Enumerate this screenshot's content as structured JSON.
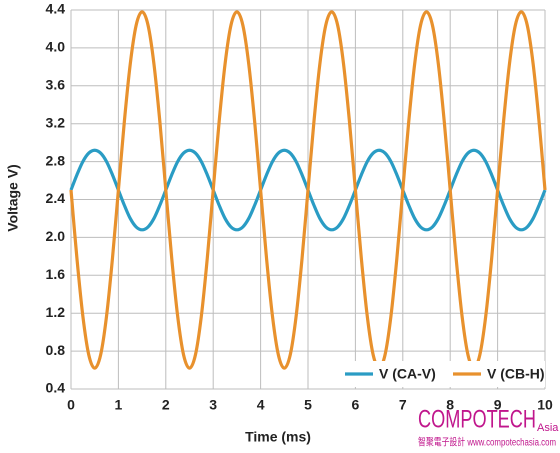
{
  "chart_data": {
    "type": "line",
    "x_label": "Time (ms)",
    "y_label": "Voltage V)",
    "watermark": {
      "brand": "COMPOTECH",
      "brand_suffix": "Asia",
      "tagline": "智聚電子設計 www.compotechasia.com"
    },
    "xlim": [
      0,
      10
    ],
    "xticks": [
      0,
      1,
      2,
      3,
      4,
      5,
      6,
      7,
      8,
      9,
      10
    ],
    "ylim": [
      0.4,
      4.4
    ],
    "yticks": [
      0.4,
      0.8,
      1.2,
      1.6,
      {
        "value": 2,
        "label": "2.0"
      },
      2.4,
      2.8,
      3.2,
      3.6,
      {
        "value": 4,
        "label": "4.0"
      },
      4.4
    ],
    "grid": true,
    "legend": "lower right",
    "x": [
      0,
      0.125,
      0.25,
      0.375,
      0.5,
      0.625,
      0.75,
      0.875,
      1,
      1.125,
      1.25,
      1.375,
      1.5,
      1.625,
      1.75,
      1.875,
      2,
      2.125,
      2.25,
      2.375,
      2.5,
      2.625,
      2.75,
      2.875,
      3,
      3.125,
      3.25,
      3.375,
      3.5,
      3.625,
      3.75,
      3.875,
      4,
      4.125,
      4.25,
      4.375,
      4.5,
      4.625,
      4.75,
      4.875,
      5,
      5.125,
      5.25,
      5.375,
      5.5,
      5.625,
      5.75,
      5.875,
      6,
      6.125,
      6.25,
      6.375,
      6.5,
      6.625,
      6.75,
      6.875,
      7,
      7.125,
      7.25,
      7.375,
      7.5,
      7.625,
      7.75,
      7.875,
      8,
      8.125,
      8.25,
      8.375,
      8.5,
      8.625,
      8.75,
      8.875,
      9,
      9.125,
      9.25,
      9.375,
      9.5,
      9.625,
      9.75,
      9.875,
      10
    ],
    "series": [
      {
        "name": "V (CA-V)",
        "color": "#2a9cc4",
        "values": [
          2.5,
          2.66,
          2.8,
          2.89,
          2.92,
          2.89,
          2.8,
          2.66,
          2.5,
          2.34,
          2.2,
          2.11,
          2.08,
          2.11,
          2.2,
          2.34,
          2.5,
          2.66,
          2.8,
          2.89,
          2.92,
          2.89,
          2.8,
          2.66,
          2.5,
          2.34,
          2.2,
          2.11,
          2.08,
          2.11,
          2.2,
          2.34,
          2.5,
          2.66,
          2.8,
          2.89,
          2.92,
          2.89,
          2.8,
          2.66,
          2.5,
          2.34,
          2.2,
          2.11,
          2.08,
          2.11,
          2.2,
          2.34,
          2.5,
          2.66,
          2.8,
          2.89,
          2.92,
          2.89,
          2.8,
          2.66,
          2.5,
          2.34,
          2.2,
          2.11,
          2.08,
          2.11,
          2.2,
          2.34,
          2.5,
          2.66,
          2.8,
          2.89,
          2.92,
          2.89,
          2.8,
          2.66,
          2.5,
          2.34,
          2.2,
          2.11,
          2.08,
          2.11,
          2.2,
          2.34,
          2.5
        ]
      },
      {
        "name": "V (CB-H)",
        "color": "#e8912d",
        "values": [
          2.5,
          1.78,
          1.17,
          0.76,
          0.62,
          0.76,
          1.17,
          1.78,
          2.5,
          3.22,
          3.83,
          4.24,
          4.38,
          4.24,
          3.83,
          3.22,
          2.5,
          1.78,
          1.17,
          0.76,
          0.62,
          0.76,
          1.17,
          1.78,
          2.5,
          3.22,
          3.83,
          4.24,
          4.38,
          4.24,
          3.83,
          3.22,
          2.5,
          1.78,
          1.17,
          0.76,
          0.62,
          0.76,
          1.17,
          1.78,
          2.5,
          3.22,
          3.83,
          4.24,
          4.38,
          4.24,
          3.83,
          3.22,
          2.5,
          1.78,
          1.17,
          0.76,
          0.62,
          0.76,
          1.17,
          1.78,
          2.5,
          3.22,
          3.83,
          4.24,
          4.38,
          4.24,
          3.83,
          3.22,
          2.5,
          1.78,
          1.17,
          0.76,
          0.62,
          0.76,
          1.17,
          1.78,
          2.5,
          3.22,
          3.83,
          4.24,
          4.38,
          4.24,
          3.83,
          3.22,
          2.5
        ]
      }
    ]
  }
}
